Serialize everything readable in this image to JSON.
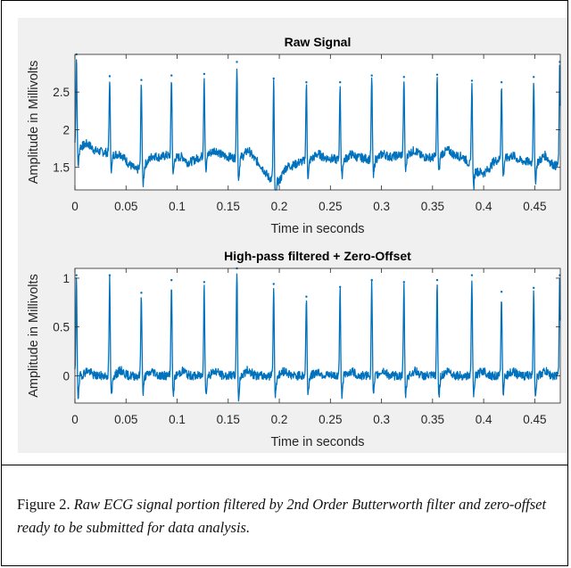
{
  "caption": {
    "label": "Figure 2.",
    "text": "Raw ECG signal portion filtered by 2nd Order Butterworth filter and zero-offset ready to be submitted for data analysis."
  },
  "colors": {
    "line": "#0072BD",
    "panel": "#f0f0f0",
    "axes_bg": "#ffffff",
    "axis": "#262626"
  },
  "chart_data": [
    {
      "type": "line",
      "title": "Raw Signal",
      "xlabel": "Time in seconds",
      "ylabel": "Amplitude in Millivolts",
      "xlim": [
        0,
        0.475
      ],
      "ylim": [
        1.2,
        3.0
      ],
      "xticks": [
        0,
        0.05,
        0.1,
        0.15,
        0.2,
        0.25,
        0.3,
        0.35,
        0.4,
        0.45
      ],
      "xtick_labels": [
        "0",
        "0.05",
        "0.1",
        "0.15",
        "0.2",
        "0.25",
        "0.3",
        "0.35",
        "0.4",
        "0.45"
      ],
      "yticks": [
        1.5,
        2,
        2.5
      ],
      "ytick_labels": [
        "1.5",
        "2",
        "2.5"
      ],
      "grid": false,
      "series": [
        {
          "x": [
            0.0015,
            0.034,
            0.065,
            0.0945,
            0.1265,
            0.1585,
            0.1945,
            0.2265,
            0.2595,
            0.2905,
            0.322,
            0.3545,
            0.3885,
            0.4175,
            0.449,
            0.4745
          ],
          "peak": [
            3.0,
            2.71,
            2.66,
            2.72,
            2.74,
            2.9,
            2.68,
            2.63,
            2.63,
            2.72,
            2.7,
            2.73,
            2.65,
            2.63,
            2.7,
            2.9
          ],
          "baseline": [
            [
              0.0,
              1.8
            ],
            [
              0.01,
              1.76
            ],
            [
              0.02,
              1.72
            ],
            [
              0.03,
              1.7
            ],
            [
              0.04,
              1.66
            ],
            [
              0.05,
              1.58
            ],
            [
              0.06,
              1.46
            ],
            [
              0.07,
              1.55
            ],
            [
              0.08,
              1.62
            ],
            [
              0.09,
              1.66
            ],
            [
              0.1,
              1.62
            ],
            [
              0.11,
              1.55
            ],
            [
              0.12,
              1.62
            ],
            [
              0.13,
              1.68
            ],
            [
              0.14,
              1.67
            ],
            [
              0.15,
              1.64
            ],
            [
              0.16,
              1.62
            ],
            [
              0.17,
              1.66
            ],
            [
              0.18,
              1.56
            ],
            [
              0.19,
              1.36
            ],
            [
              0.2,
              1.3
            ],
            [
              0.21,
              1.5
            ],
            [
              0.22,
              1.57
            ],
            [
              0.23,
              1.6
            ],
            [
              0.24,
              1.63
            ],
            [
              0.25,
              1.62
            ],
            [
              0.26,
              1.59
            ],
            [
              0.27,
              1.62
            ],
            [
              0.28,
              1.63
            ],
            [
              0.29,
              1.6
            ],
            [
              0.3,
              1.62
            ],
            [
              0.31,
              1.64
            ],
            [
              0.32,
              1.67
            ],
            [
              0.33,
              1.68
            ],
            [
              0.34,
              1.64
            ],
            [
              0.35,
              1.63
            ],
            [
              0.36,
              1.68
            ],
            [
              0.37,
              1.66
            ],
            [
              0.38,
              1.64
            ],
            [
              0.39,
              1.48
            ],
            [
              0.4,
              1.36
            ],
            [
              0.41,
              1.58
            ],
            [
              0.42,
              1.62
            ],
            [
              0.43,
              1.6
            ],
            [
              0.44,
              1.58
            ],
            [
              0.45,
              1.56
            ],
            [
              0.46,
              1.6
            ],
            [
              0.47,
              1.52
            ],
            [
              0.475,
              1.55
            ]
          ]
        }
      ]
    },
    {
      "type": "line",
      "title": "High-pass filtered + Zero-Offset",
      "xlabel": "Time in seconds",
      "ylabel": "Amplitude in Millivolts",
      "xlim": [
        0,
        0.475
      ],
      "ylim": [
        -0.28,
        1.1
      ],
      "xticks": [
        0,
        0.05,
        0.1,
        0.15,
        0.2,
        0.25,
        0.3,
        0.35,
        0.4,
        0.45
      ],
      "xtick_labels": [
        "0",
        "0.05",
        "0.1",
        "0.15",
        "0.2",
        "0.25",
        "0.3",
        "0.35",
        "0.4",
        "0.45"
      ],
      "yticks": [
        0,
        0.5,
        1
      ],
      "ytick_labels": [
        "0",
        "0.5",
        "1"
      ],
      "grid": false,
      "series": [
        {
          "x": [
            0.0015,
            0.034,
            0.065,
            0.0945,
            0.1265,
            0.1585,
            0.1945,
            0.2265,
            0.2595,
            0.2905,
            0.322,
            0.3545,
            0.3885,
            0.4175,
            0.449,
            0.4745
          ],
          "peak": [
            1.03,
            1.03,
            0.85,
            0.98,
            0.96,
            1.1,
            0.94,
            0.81,
            0.91,
            0.98,
            0.96,
            0.98,
            1.03,
            0.86,
            0.9,
            1.03
          ],
          "baseline": [
            [
              0.0,
              0.0
            ],
            [
              0.475,
              0.0
            ]
          ]
        }
      ]
    }
  ]
}
